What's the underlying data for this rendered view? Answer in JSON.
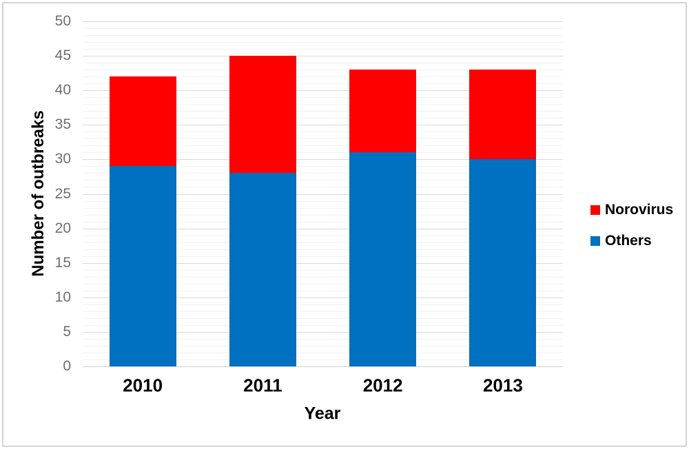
{
  "chart_data": {
    "type": "bar",
    "stacked": true,
    "title": "",
    "xlabel": "Year",
    "ylabel": "Number of outbreaks",
    "categories": [
      "2010",
      "2011",
      "2012",
      "2013"
    ],
    "series": [
      {
        "name": "Others",
        "color": "#0070C0",
        "values": [
          29,
          28,
          31,
          30
        ]
      },
      {
        "name": "Norovirus",
        "color": "#FF0000",
        "values": [
          13,
          17,
          12,
          13
        ]
      }
    ],
    "stack_totals": [
      42,
      45,
      43,
      43
    ],
    "ylim": [
      0,
      50
    ],
    "yticks": [
      0,
      5,
      10,
      15,
      20,
      25,
      30,
      35,
      40,
      45,
      50
    ],
    "major_gridline_step": 5,
    "minor_gridline_step": 1,
    "grid": "horizontal major+minor, no vertical axis line",
    "legend_position": "right-middle"
  },
  "axes": {
    "x_title": "Year",
    "y_title": "Number of outbreaks"
  },
  "legend": {
    "items": [
      {
        "label": "Norovirus",
        "color": "#FF0000"
      },
      {
        "label": "Others",
        "color": "#0070C0"
      }
    ]
  },
  "style": {
    "background": "#FFFFFF",
    "figure_border_color": "#D4D4D4",
    "major_gridline_color": "#D9D9D9",
    "minor_gridline_color": "#F2F2F2",
    "y_tick_label_color": "#6F6F6F",
    "text_color": "#000000"
  }
}
